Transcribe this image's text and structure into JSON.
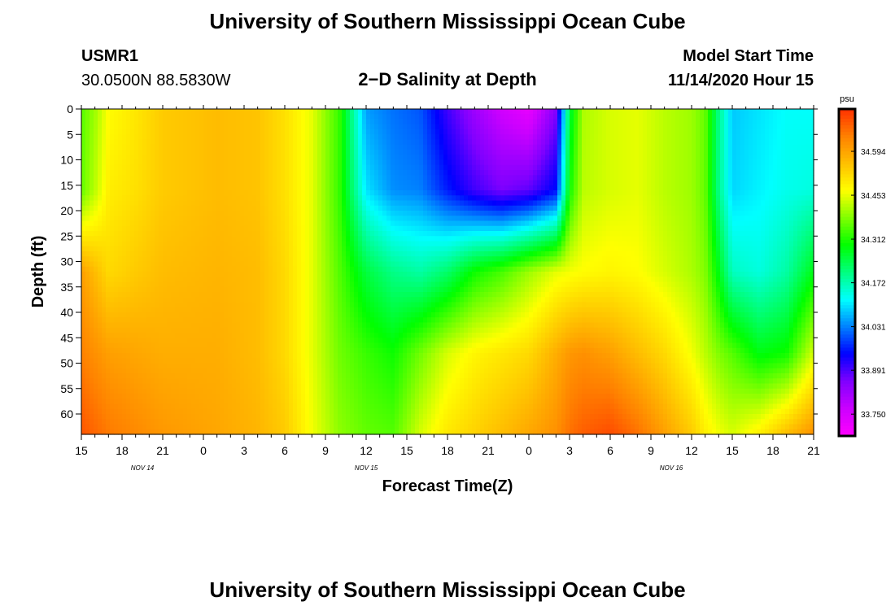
{
  "header": {
    "title": "University of Southern Mississippi Ocean Cube",
    "station": "USMR1",
    "coords": "30.0500N 88.5830W",
    "subtitle": "2−D Salinity at Depth",
    "model_start_label": "Model Start Time",
    "model_start_value": "11/14/2020 Hour 15"
  },
  "footer": {
    "title": "University of Southern Mississippi Ocean Cube"
  },
  "chart_data": {
    "type": "heatmap",
    "title": "2−D Salinity at Depth",
    "xlabel": "Forecast Time(Z)",
    "ylabel": "Depth (ft)",
    "x_unit": "hours since model start (11/14/2020 Hour 15)",
    "x_range": [
      0,
      54
    ],
    "y_range": [
      0,
      64
    ],
    "y_inverted": true,
    "grid": false,
    "x_ticks": [
      {
        "h": 0,
        "label": "15"
      },
      {
        "h": 3,
        "label": "18"
      },
      {
        "h": 6,
        "label": "21"
      },
      {
        "h": 9,
        "label": "0"
      },
      {
        "h": 12,
        "label": "3"
      },
      {
        "h": 15,
        "label": "6"
      },
      {
        "h": 18,
        "label": "9"
      },
      {
        "h": 21,
        "label": "12"
      },
      {
        "h": 24,
        "label": "15"
      },
      {
        "h": 27,
        "label": "18"
      },
      {
        "h": 30,
        "label": "21"
      },
      {
        "h": 33,
        "label": "0"
      },
      {
        "h": 36,
        "label": "3"
      },
      {
        "h": 39,
        "label": "6"
      },
      {
        "h": 42,
        "label": "9"
      },
      {
        "h": 45,
        "label": "12"
      },
      {
        "h": 48,
        "label": "15"
      },
      {
        "h": 51,
        "label": "18"
      },
      {
        "h": 54,
        "label": "21"
      }
    ],
    "date_labels": [
      {
        "h": 4.5,
        "label": "NOV 14"
      },
      {
        "h": 21,
        "label": "NOV 15"
      },
      {
        "h": 43.5,
        "label": "NOV 16"
      }
    ],
    "y_ticks": [
      0,
      5,
      10,
      15,
      20,
      25,
      30,
      35,
      40,
      45,
      50,
      55,
      60
    ],
    "colorbar": {
      "unit": "psu",
      "min": 33.68,
      "max": 34.73,
      "labels": [
        34.594,
        34.453,
        34.312,
        34.172,
        34.031,
        33.891,
        33.75
      ],
      "colors": [
        "#ff00ff",
        "#cc00ff",
        "#8000ff",
        "#0000ff",
        "#0080ff",
        "#00ffff",
        "#00ff80",
        "#00ff00",
        "#80ff00",
        "#ffff00",
        "#ffc000",
        "#ff8000",
        "#ff3000"
      ]
    },
    "value_unit": "psu",
    "depths": [
      0,
      16,
      32,
      48,
      64
    ],
    "series": [
      {
        "h": 0,
        "values": [
          34.35,
          34.36,
          34.6,
          34.64,
          34.69
        ]
      },
      {
        "h": 1,
        "values": [
          34.4,
          34.42,
          34.56,
          34.62,
          34.67
        ]
      },
      {
        "h": 2,
        "values": [
          34.47,
          34.49,
          34.52,
          34.6,
          34.65
        ]
      },
      {
        "h": 4,
        "values": [
          34.5,
          34.51,
          34.54,
          34.59,
          34.63
        ]
      },
      {
        "h": 6,
        "values": [
          34.54,
          34.54,
          34.56,
          34.58,
          34.61
        ]
      },
      {
        "h": 10,
        "values": [
          34.56,
          34.56,
          34.57,
          34.58,
          34.59
        ]
      },
      {
        "h": 13,
        "values": [
          34.55,
          34.55,
          34.56,
          34.56,
          34.57
        ]
      },
      {
        "h": 15,
        "values": [
          34.51,
          34.51,
          34.52,
          34.52,
          34.54
        ]
      },
      {
        "h": 17,
        "values": [
          34.45,
          34.45,
          34.45,
          34.45,
          34.46
        ]
      },
      {
        "h": 19,
        "values": [
          34.33,
          34.33,
          34.35,
          34.37,
          34.39
        ]
      },
      {
        "h": 21,
        "values": [
          34.05,
          34.1,
          34.25,
          34.33,
          34.36
        ]
      },
      {
        "h": 23,
        "values": [
          34.02,
          34.04,
          34.2,
          34.3,
          34.35
        ]
      },
      {
        "h": 25,
        "values": [
          34.0,
          34.03,
          34.18,
          34.37,
          34.44
        ]
      },
      {
        "h": 27,
        "values": [
          33.9,
          33.96,
          34.22,
          34.44,
          34.5
        ]
      },
      {
        "h": 29,
        "values": [
          33.82,
          33.9,
          34.3,
          34.48,
          34.53
        ]
      },
      {
        "h": 31,
        "values": [
          33.76,
          33.86,
          34.34,
          34.5,
          34.56
        ]
      },
      {
        "h": 33,
        "values": [
          33.72,
          33.88,
          34.4,
          34.52,
          34.59
        ]
      },
      {
        "h": 35,
        "values": [
          33.85,
          33.95,
          34.45,
          34.58,
          34.62
        ]
      },
      {
        "h": 36,
        "values": [
          34.25,
          34.3,
          34.46,
          34.61,
          34.66
        ]
      },
      {
        "h": 37,
        "values": [
          34.41,
          34.42,
          34.47,
          34.62,
          34.68
        ]
      },
      {
        "h": 39,
        "values": [
          34.44,
          34.44,
          34.48,
          34.6,
          34.7
        ]
      },
      {
        "h": 41,
        "values": [
          34.45,
          34.45,
          34.47,
          34.56,
          34.66
        ]
      },
      {
        "h": 43,
        "values": [
          34.42,
          34.42,
          34.44,
          34.52,
          34.6
        ]
      },
      {
        "h": 45,
        "values": [
          34.4,
          34.4,
          34.41,
          34.46,
          34.54
        ]
      },
      {
        "h": 46,
        "values": [
          34.36,
          34.36,
          34.38,
          34.42,
          34.49
        ]
      },
      {
        "h": 47,
        "values": [
          34.2,
          34.2,
          34.28,
          34.38,
          34.46
        ]
      },
      {
        "h": 48,
        "values": [
          34.08,
          34.09,
          34.16,
          34.35,
          34.44
        ]
      },
      {
        "h": 50,
        "values": [
          34.1,
          34.11,
          34.14,
          34.28,
          34.49
        ]
      },
      {
        "h": 52,
        "values": [
          34.12,
          34.13,
          34.18,
          34.3,
          34.56
        ]
      },
      {
        "h": 54,
        "values": [
          34.12,
          34.14,
          34.28,
          34.44,
          34.62
        ]
      }
    ]
  }
}
